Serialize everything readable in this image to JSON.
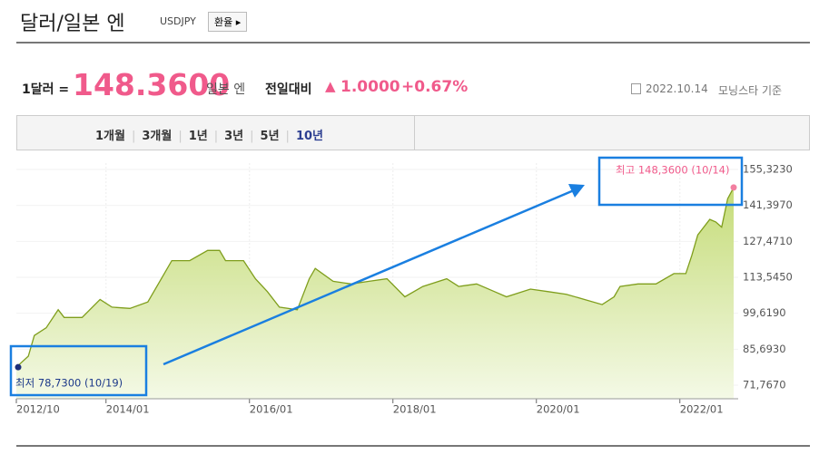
{
  "header": {
    "title": "달러/일본 엔",
    "code": "USDJPY",
    "button": "환율"
  },
  "quote": {
    "unit_label": "1달러 =",
    "price": "148.3600",
    "currency": "일본 엔",
    "change_label": "전일대비",
    "change": "1.0000",
    "change_pct": "+0.67%",
    "date": "2022.10.14",
    "source": "모닝스타 기준"
  },
  "tabs": [
    "1개월",
    "3개월",
    "1년",
    "3년",
    "5년",
    "10년"
  ],
  "chart_data": {
    "type": "area",
    "color": "#7f9e1c",
    "x": [
      "2012/10",
      "2012/12",
      "2013/01",
      "2013/03",
      "2013/05",
      "2013/06",
      "2013/09",
      "2013/12",
      "2014/02",
      "2014/05",
      "2014/08",
      "2014/10",
      "2014/12",
      "2015/03",
      "2015/06",
      "2015/08",
      "2015/09",
      "2015/12",
      "2016/02",
      "2016/04",
      "2016/06",
      "2016/09",
      "2016/11",
      "2016/12",
      "2017/03",
      "2017/06",
      "2017/09",
      "2017/12",
      "2018/03",
      "2018/06",
      "2018/10",
      "2018/12",
      "2019/03",
      "2019/06",
      "2019/08",
      "2019/12",
      "2020/03",
      "2020/06",
      "2020/09",
      "2020/12",
      "2021/02",
      "2021/03",
      "2021/06",
      "2021/09",
      "2021/12",
      "2022/02",
      "2022/03",
      "2022/04",
      "2022/06",
      "2022/07",
      "2022/08",
      "2022/09",
      "2022/10"
    ],
    "values": [
      78.73,
      83,
      91,
      94,
      101,
      98,
      98,
      105,
      102,
      101.5,
      104,
      112,
      120,
      120,
      124,
      124,
      120,
      120,
      113,
      108,
      102,
      101,
      113,
      117,
      112,
      111,
      112,
      113,
      106,
      110,
      113,
      110,
      111,
      108,
      106,
      109,
      108,
      107,
      105,
      103,
      106,
      110,
      111,
      111,
      115,
      115,
      122,
      130,
      136,
      135,
      133,
      144,
      148.36
    ],
    "ylim": [
      66.5,
      157.8
    ],
    "yticks": [
      {
        "value": 71.767,
        "label": "71,7670"
      },
      {
        "value": 85.693,
        "label": "85,6930"
      },
      {
        "value": 99.619,
        "label": "99,6190"
      },
      {
        "value": 113.545,
        "label": "113,5450"
      },
      {
        "value": 127.471,
        "label": "127,4710"
      },
      {
        "value": 141.397,
        "label": "141,3970"
      },
      {
        "value": 155.323,
        "label": "155,3230"
      }
    ],
    "xticks": [
      "2012/10",
      "2014/01",
      "2016/01",
      "2018/01",
      "2020/01",
      "2022/01"
    ],
    "annotations": [
      "최고 148,3600 (10/14)",
      "최저 78,7300 (10/19)"
    ]
  }
}
